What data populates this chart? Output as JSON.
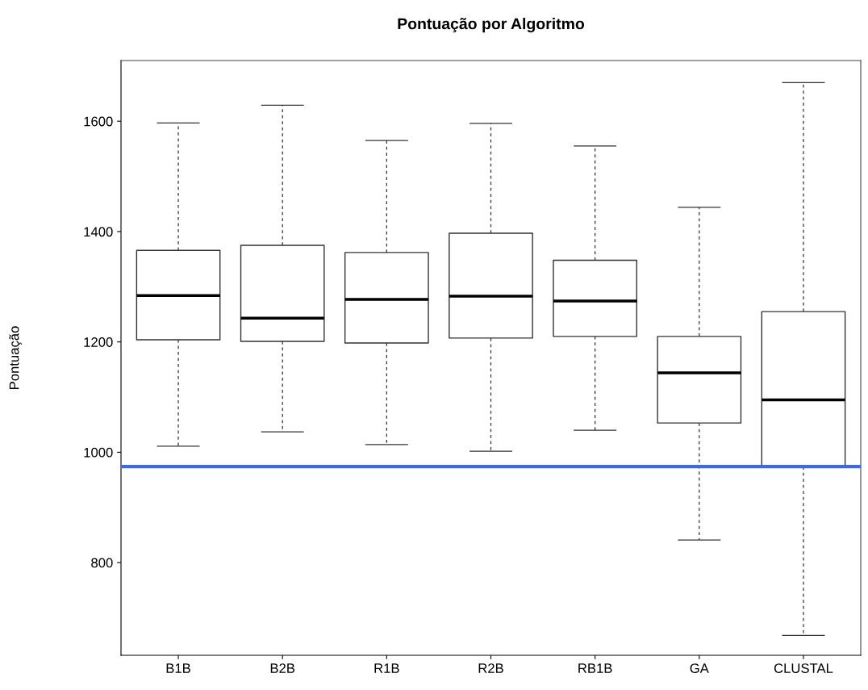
{
  "chart_data": {
    "type": "box",
    "title": "Pontuação por Algoritmo",
    "ylabel": "Pontuação",
    "categories": [
      "B1B",
      "B2B",
      "R1B",
      "R2B",
      "RB1B",
      "GA",
      "CLUSTAL"
    ],
    "boxes": [
      {
        "low": 1011,
        "q1": 1204,
        "median": 1284,
        "q3": 1366,
        "high": 1597
      },
      {
        "low": 1037,
        "q1": 1201,
        "median": 1243,
        "q3": 1375,
        "high": 1629
      },
      {
        "low": 1014,
        "q1": 1198,
        "median": 1277,
        "q3": 1362,
        "high": 1565
      },
      {
        "low": 1002,
        "q1": 1207,
        "median": 1283,
        "q3": 1397,
        "high": 1596
      },
      {
        "low": 1040,
        "q1": 1210,
        "median": 1274,
        "q3": 1348,
        "high": 1555
      },
      {
        "low": 841,
        "q1": 1053,
        "median": 1144,
        "q3": 1210,
        "high": 1444
      },
      {
        "low": 668,
        "q1": 974,
        "median": 1095,
        "q3": 1255,
        "high": 1670
      }
    ],
    "ylim": [
      632,
      1710
    ],
    "yticks": [
      800,
      1000,
      1200,
      1400,
      1600
    ],
    "ref_lines": [
      {
        "axis": "y",
        "value": 974,
        "label": null,
        "color": "#4169e1"
      }
    ],
    "grid": false
  }
}
